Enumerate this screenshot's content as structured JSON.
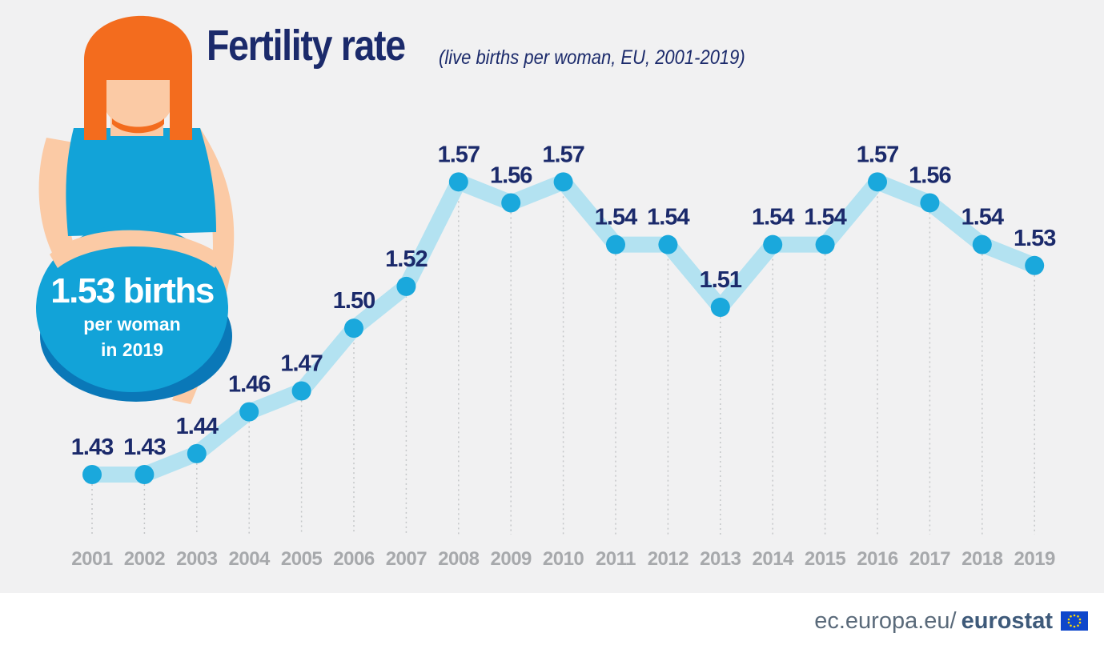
{
  "header": {
    "title": "Fertility rate",
    "subtitle": "(live births per woman, EU, 2001-2019)"
  },
  "callout": {
    "value": "1.53 births",
    "line2": "per woman",
    "line3": "in 2019"
  },
  "footer": {
    "domain": "ec.europa.eu/",
    "brand": "eurostat"
  },
  "colors": {
    "title": "#1b2a6b",
    "line": "#b3e2f1",
    "point": "#1aa8dc",
    "year": "#a7a9ac",
    "hair": "#f36c1e",
    "skin": "#fbcaa5",
    "top": "#12a3d8",
    "belly_dark": "#0a78b8"
  },
  "chart_data": {
    "type": "line",
    "title": "Fertility rate",
    "subtitle": "(live births per woman, EU, 2001-2019)",
    "x": [
      "2001",
      "2002",
      "2003",
      "2004",
      "2005",
      "2006",
      "2007",
      "2008",
      "2009",
      "2010",
      "2011",
      "2012",
      "2013",
      "2014",
      "2015",
      "2016",
      "2017",
      "2018",
      "2019"
    ],
    "labels": [
      "1.43",
      "1.43",
      "1.44",
      "1.46",
      "1.47",
      "1.50",
      "1.52",
      "1.57",
      "1.56",
      "1.57",
      "1.54",
      "1.54",
      "1.51",
      "1.54",
      "1.54",
      "1.57",
      "1.56",
      "1.54",
      "1.53"
    ],
    "series": [
      {
        "values": [
          1.43,
          1.43,
          1.44,
          1.46,
          1.47,
          1.5,
          1.52,
          1.57,
          1.56,
          1.57,
          1.54,
          1.54,
          1.51,
          1.54,
          1.54,
          1.57,
          1.56,
          1.54,
          1.53
        ]
      }
    ],
    "grid": false,
    "legend": "none"
  }
}
